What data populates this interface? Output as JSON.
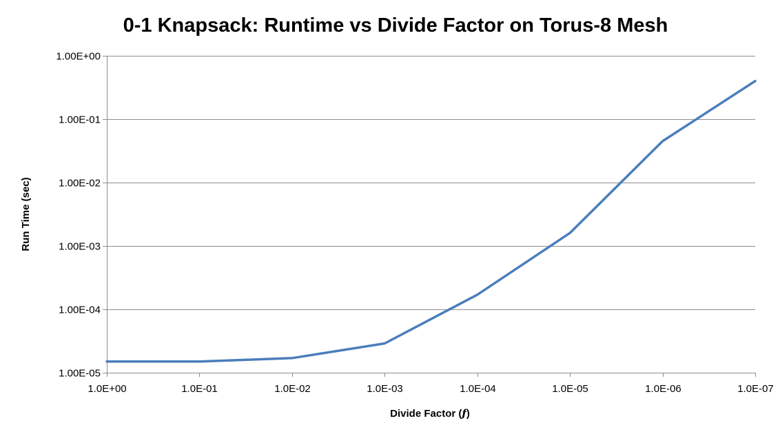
{
  "chart_data": {
    "type": "line",
    "title": "0-1 Knapsack: Runtime vs Divide Factor on Torus-8 Mesh",
    "xlabel": "Divide Factor (",
    "xlabel_symbol": "f",
    "xlabel_close": ")",
    "ylabel": "Run Time (sec)",
    "yscale": "log",
    "ylim": [
      1e-05,
      1
    ],
    "grid": true,
    "legend": "none",
    "categories": [
      "1.0E+00",
      "1.0E-01",
      "1.0E-02",
      "1.0E-03",
      "1.0E-04",
      "1.0E-05",
      "1.0E-06",
      "1.0E-07"
    ],
    "x": [
      1,
      0.1,
      0.01,
      0.001,
      0.0001,
      1e-05,
      1e-06,
      1e-07
    ],
    "y_ticks": [
      1,
      0.1,
      0.01,
      0.001,
      0.0001,
      1e-05
    ],
    "y_tick_labels": [
      "1.00E+00",
      "1.00E-01",
      "1.00E-02",
      "1.00E-03",
      "1.00E-04",
      "1.00E-05"
    ],
    "series": [
      {
        "values": [
          1.5e-05,
          1.5e-05,
          1.7e-05,
          2.9e-05,
          0.00017,
          0.0016,
          0.045,
          0.4
        ]
      }
    ],
    "colors": {
      "series": "#4a7ebb",
      "grid": "#8c8c8c"
    }
  }
}
